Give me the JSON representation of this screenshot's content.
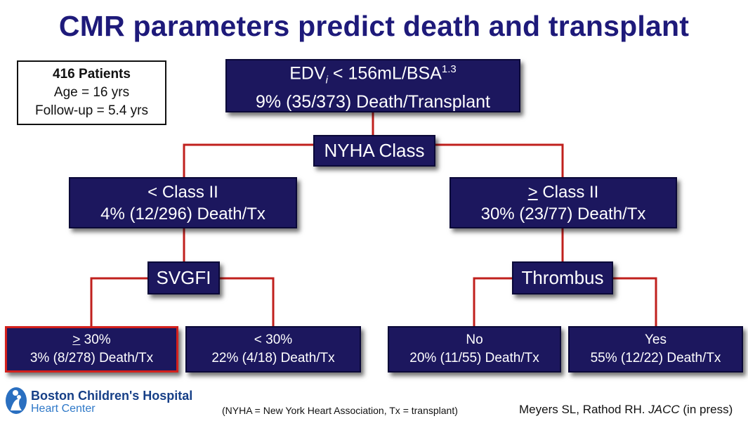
{
  "title": "CMR parameters predict death and transplant",
  "patients": {
    "count": "416 Patients",
    "age": "Age = 16 yrs",
    "followup": "Follow-up =  5.4 yrs"
  },
  "root": {
    "label_prefix": "EDV",
    "label_sub": "i",
    "label_rest": " < 156mL/BSA",
    "label_sup": "1.3",
    "stat": "9% (35/373) Death/Transplant"
  },
  "split1": "NYHA Class",
  "left": {
    "label": "< Class II",
    "stat": "4% (12/296) Death/Tx"
  },
  "right": {
    "label_sym": ">",
    "label_rest": " Class II",
    "stat": "30% (23/77) Death/Tx"
  },
  "split_left": "SVGFI",
  "split_right": "Thrombus",
  "leaves": {
    "ll": {
      "label_sym": ">",
      "label_rest": " 30%",
      "stat": "3% (8/278) Death/Tx"
    },
    "lr": {
      "label": "< 30%",
      "stat": "22% (4/18) Death/Tx"
    },
    "rl": {
      "label": "No",
      "stat": "20% (11/55) Death/Tx"
    },
    "rr": {
      "label": "Yes",
      "stat": "55% (12/22) Death/Tx"
    }
  },
  "logo": {
    "line1": "Boston Children's Hospital",
    "line2": "Heart Center"
  },
  "footnote": "(NYHA = New York Heart Association, Tx = transplant)",
  "citation_authors": "Meyers SL, Rathod RH. ",
  "citation_journal": "JACC",
  "citation_status": " (in press)",
  "colors": {
    "box_fill": "#1c175e",
    "title": "#1e1a7a",
    "connector": "#c0201d",
    "highlight": "#d3201c"
  }
}
